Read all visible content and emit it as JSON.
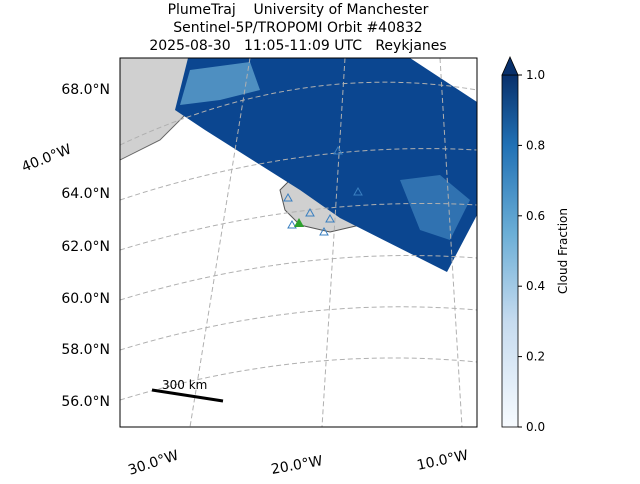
{
  "header": {
    "title_lines": [
      "PlumeTraj    University of Manchester",
      "Sentinel-5P/TROPOMI Orbit #40832",
      "2025-08-30   11:05-11:09 UTC   Reykjanes"
    ]
  },
  "map": {
    "lat_labels": [
      "68.0°N",
      "64.0°N",
      "62.0°N",
      "60.0°N",
      "58.0°N",
      "56.0°N"
    ],
    "lon_labels": [
      "40.0°W",
      "30.0°W",
      "20.0°W",
      "10.0°W"
    ],
    "scale_bar": "300 km"
  },
  "colorbar": {
    "label": "Cloud Fraction",
    "lim": [
      0,
      1
    ],
    "ticks": [
      {
        "value": 0,
        "label": "0.0"
      },
      {
        "value": 0.2,
        "label": "0.2"
      },
      {
        "value": 0.4,
        "label": "0.4"
      },
      {
        "value": 0.6,
        "label": "0.6"
      },
      {
        "value": 0.8,
        "label": "0.8"
      },
      {
        "value": 1,
        "label": "1.0"
      }
    ]
  }
}
